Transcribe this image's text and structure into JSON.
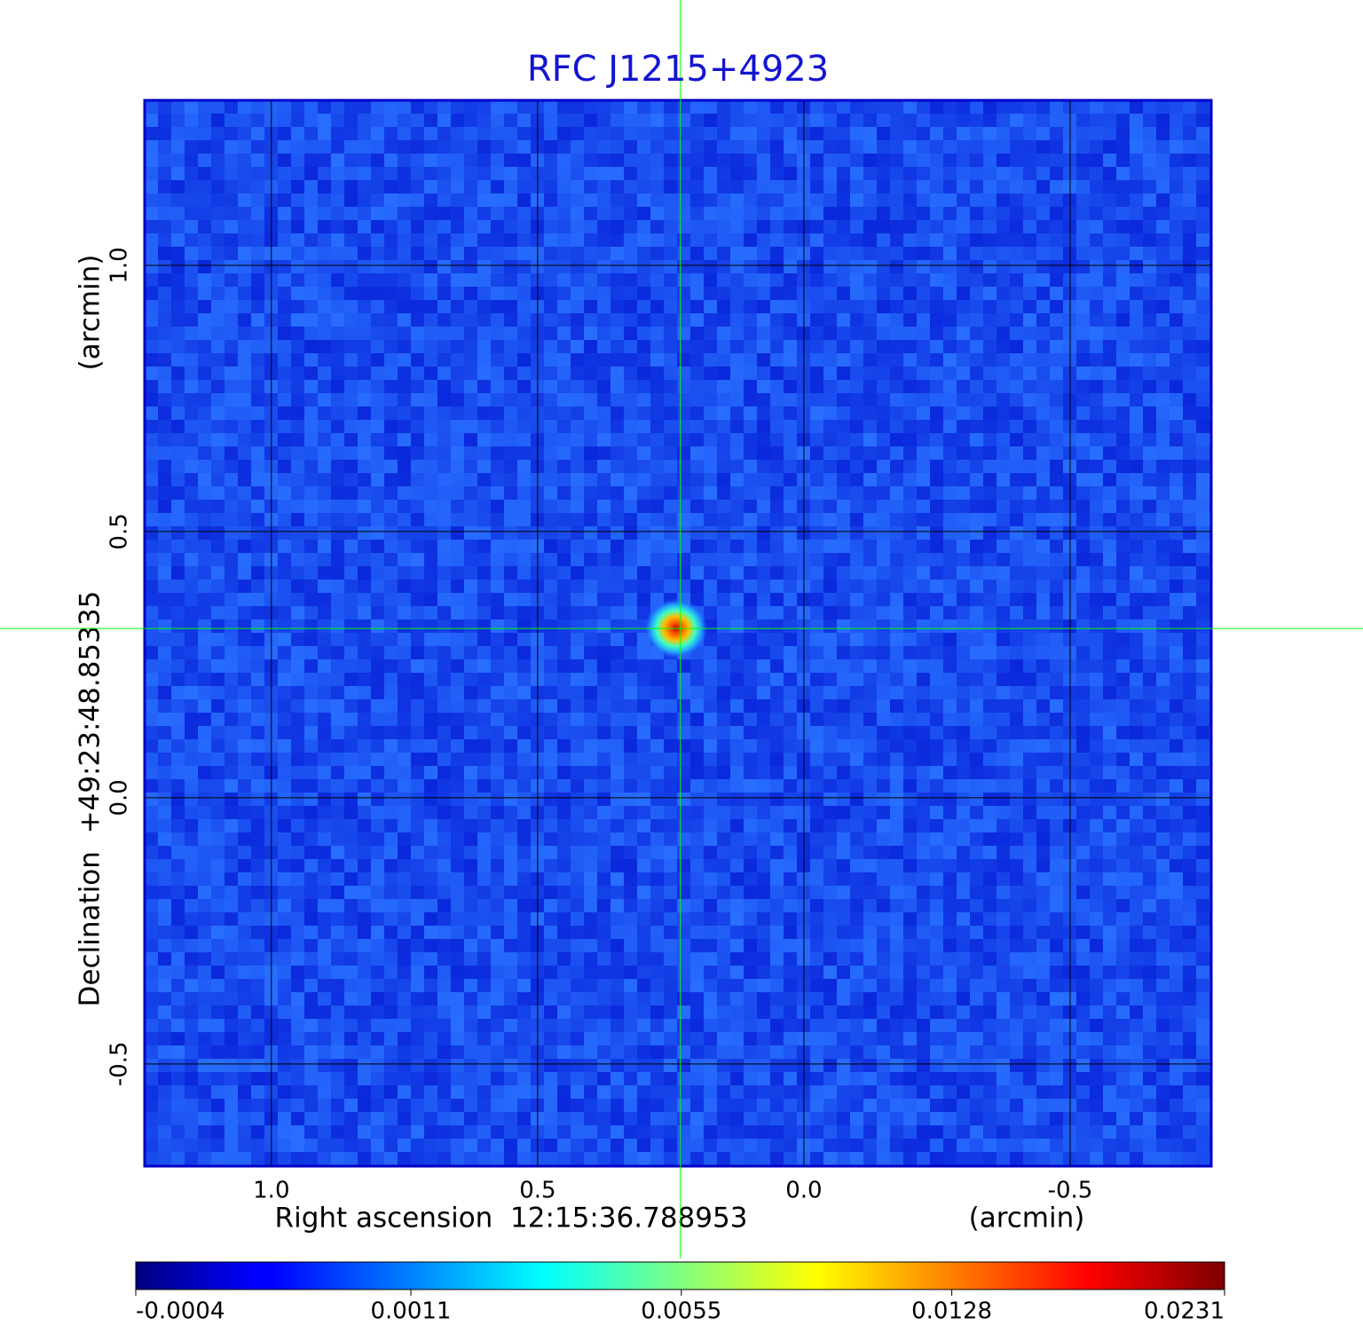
{
  "chart_data": {
    "type": "image",
    "title": "RFC J1215+4923",
    "xlabel": "Right ascension  12:15:36.788953",
    "xunit": "(arcmin)",
    "ylabel": "Declination  +49:23:48.85335",
    "yunit": "(arcmin)",
    "xlim": [
      1.238,
      -0.765
    ],
    "ylim": [
      -0.692,
      1.31
    ],
    "xticks": [
      {
        "value": 1,
        "label": "1.0"
      },
      0.5,
      {
        "value": 0,
        "label": "0.0"
      },
      -0.5
    ],
    "yticks": [
      -0.5,
      {
        "value": 0,
        "label": "0.0"
      },
      0.5,
      {
        "value": 1,
        "label": "1.0"
      }
    ],
    "grid": true,
    "crosshair": {
      "x": 0.232,
      "y": 0.318,
      "color": "#00ff00"
    },
    "source": {
      "x": 0.24,
      "y": 0.318,
      "peak": 0.0231
    },
    "colorbar": {
      "colormap": "jet",
      "scale": "sqrt",
      "clim": [
        -0.0004,
        0.0231
      ],
      "ticks": [
        -0.0004,
        0.0011,
        0.0055,
        0.0128,
        0.0231
      ]
    }
  }
}
